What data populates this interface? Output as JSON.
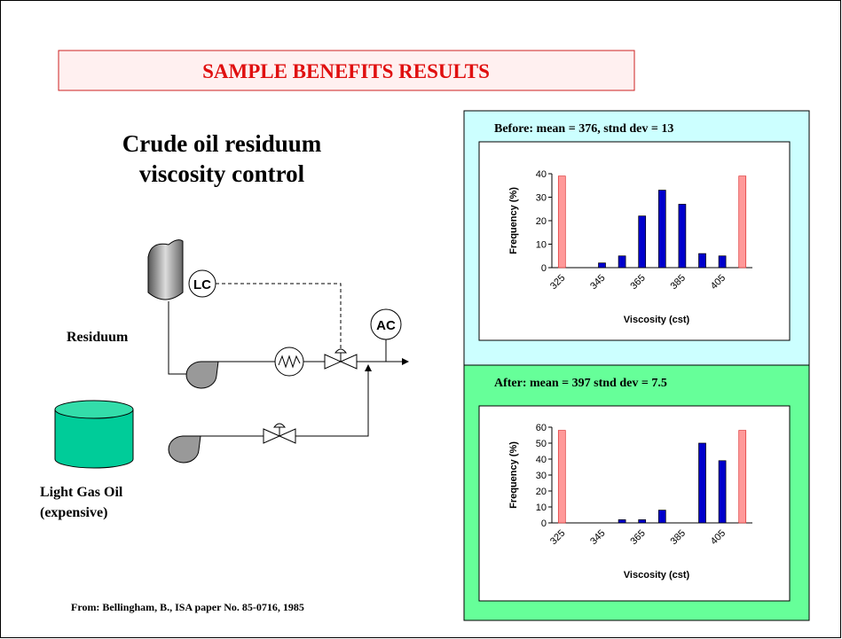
{
  "title": "SAMPLE BENEFITS RESULTS",
  "subtitle": [
    "Crude oil residuum",
    "viscosity control"
  ],
  "diagram": {
    "lc": "LC",
    "ac": "AC",
    "residuum": "Residuum",
    "light_gas_oil": [
      "Light Gas Oil",
      "(expensive)"
    ]
  },
  "citation": "From: Bellingham, B., ISA paper No. 85-0716, 1985",
  "chart_data": [
    {
      "type": "bar",
      "title": "Before: mean = 376, stnd dev = 13",
      "categories": [
        "325",
        null,
        "345",
        null,
        "365",
        null,
        "385",
        null,
        "405",
        null
      ],
      "series": [
        {
          "color": "#0000cc",
          "values": [
            null,
            null,
            2,
            5,
            22,
            33,
            27,
            6,
            5,
            null
          ]
        },
        {
          "color": "#ff9999",
          "values": [
            39,
            null,
            null,
            null,
            null,
            null,
            null,
            null,
            null,
            39
          ]
        }
      ],
      "ylim": [
        0,
        40
      ],
      "yticks": [
        0,
        10,
        20,
        30,
        40
      ],
      "ylabel": "Frequency (%)",
      "xlabel": "Viscosity (cst)"
    },
    {
      "type": "bar",
      "title": "After: mean = 397 stnd dev = 7.5",
      "categories": [
        "325",
        null,
        "345",
        null,
        "365",
        null,
        "385",
        null,
        "405",
        null
      ],
      "series": [
        {
          "color": "#0000cc",
          "values": [
            null,
            null,
            null,
            2,
            2,
            8,
            null,
            50,
            39,
            null
          ]
        },
        {
          "color": "#ff9999",
          "values": [
            58,
            null,
            null,
            null,
            null,
            null,
            null,
            null,
            null,
            58
          ]
        }
      ],
      "ylim": [
        0,
        60
      ],
      "yticks": [
        0,
        10,
        20,
        30,
        40,
        50,
        60
      ],
      "ylabel": "Frequency (%)",
      "xlabel": "Viscosity (cst)"
    }
  ]
}
